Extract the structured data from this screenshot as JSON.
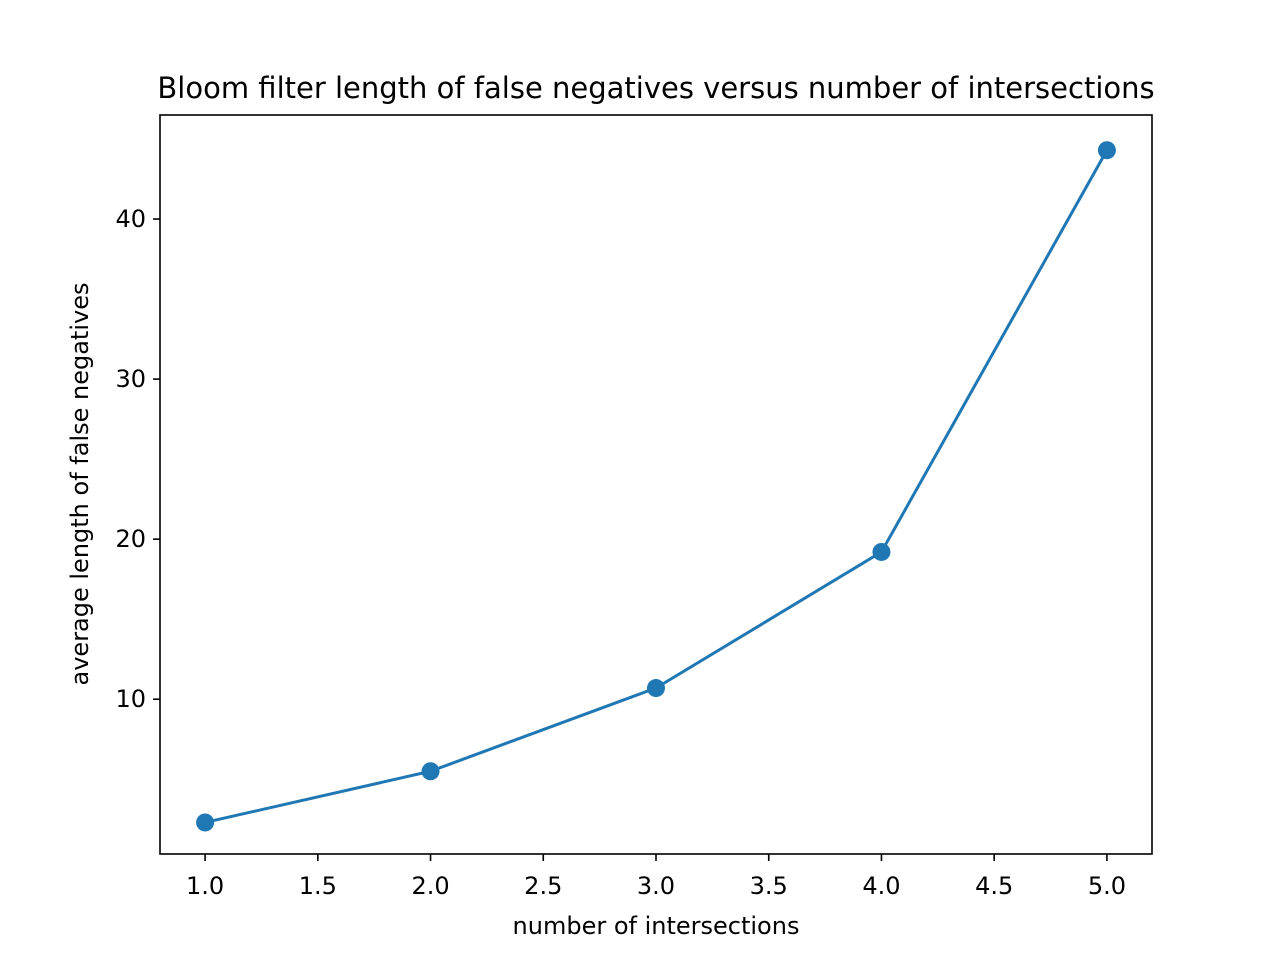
{
  "chart_data": {
    "type": "line",
    "title": "Bloom filter length of false negatives versus number of intersections",
    "xlabel": "number of intersections",
    "ylabel": "average length of false negatives",
    "xlim": [
      0.8,
      5.2
    ],
    "ylim": [
      0.33,
      46.5
    ],
    "xticks": [
      "1.0",
      "1.5",
      "2.0",
      "2.5",
      "3.0",
      "3.5",
      "4.0",
      "4.5",
      "5.0"
    ],
    "yticks": [
      "10",
      "20",
      "30",
      "40"
    ],
    "grid": false,
    "legend": "none",
    "series": [
      {
        "color": "#1f77b4",
        "marker": "circle",
        "x": [
          1.0,
          2.0,
          3.0,
          4.0,
          5.0
        ],
        "y": [
          2.3,
          5.5,
          10.7,
          19.2,
          44.3
        ]
      }
    ]
  }
}
